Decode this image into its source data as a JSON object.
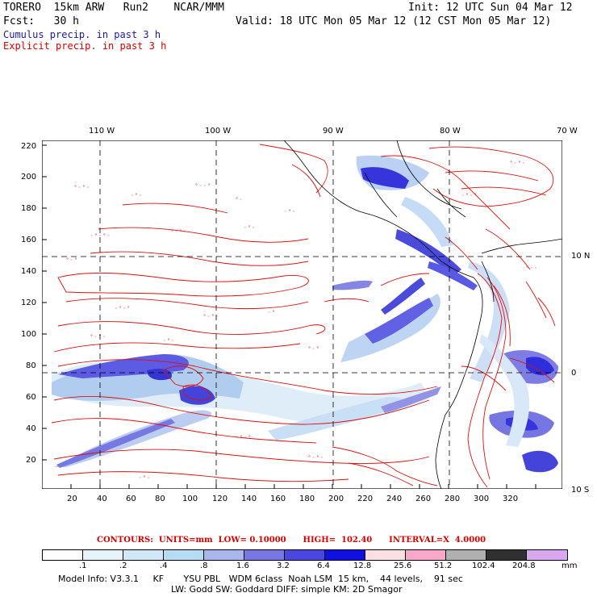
{
  "header": {
    "line1_left": "TORERO  15km ARW   Run2    NCAR/MMM",
    "line1_right": "Init: 12 UTC Sun 04 Mar 12",
    "line2_left": "Fcst:   30 h",
    "line2_right": "Valid: 18 UTC Mon 05 Mar 12 (12 CST Mon 05 Mar 12)",
    "line3": "Cumulus precip. in past 3 h",
    "line4": "Explicit precip. in past 3 h",
    "line3_color": "#1a1aa8",
    "line4_color": "#d40000"
  },
  "map": {
    "lon_labels": [
      "110 W",
      "100 W",
      "90 W",
      "80 W",
      "70 W"
    ],
    "lat_labels": [
      "10 N",
      "0",
      "10 S"
    ],
    "y_ticks": [
      "220",
      "200",
      "180",
      "160",
      "140",
      "120",
      "100",
      "80",
      "60",
      "40",
      "20"
    ],
    "x_ticks": [
      "20",
      "40",
      "60",
      "80",
      "100",
      "120",
      "140",
      "160",
      "180",
      "200",
      "220",
      "240",
      "260",
      "280",
      "300",
      "320"
    ]
  },
  "contours_line": "CONTOURS:  UNITS=mm  LOW= 0.10000      HIGH=  102.40      INTERVAL=X  4.0000",
  "colorbar": {
    "colors": [
      "#ffffff",
      "#e8f4fc",
      "#d0e8f8",
      "#b4dcf4",
      "#a8b8ec",
      "#7878e0",
      "#4848e0",
      "#1010e0",
      "#fce0e4",
      "#f8a8c8",
      "#b0b0b0",
      "#303030",
      "#d8a8f0"
    ],
    "labels": [
      ".1",
      ".2",
      ".4",
      ".8",
      "1.6",
      "3.2",
      "6.4",
      "12.8",
      "25.6",
      "51.2",
      "102.4",
      "204.8"
    ],
    "units": "mm"
  },
  "footer": {
    "line1": "Model Info: V3.3.1     KF       YSU PBL   WDM 6class  Noah LSM  15 km,    44 levels,    91 sec",
    "line2": "LW: Godd SW: Goddard DIFF: simple KM: 2D Smagor"
  }
}
